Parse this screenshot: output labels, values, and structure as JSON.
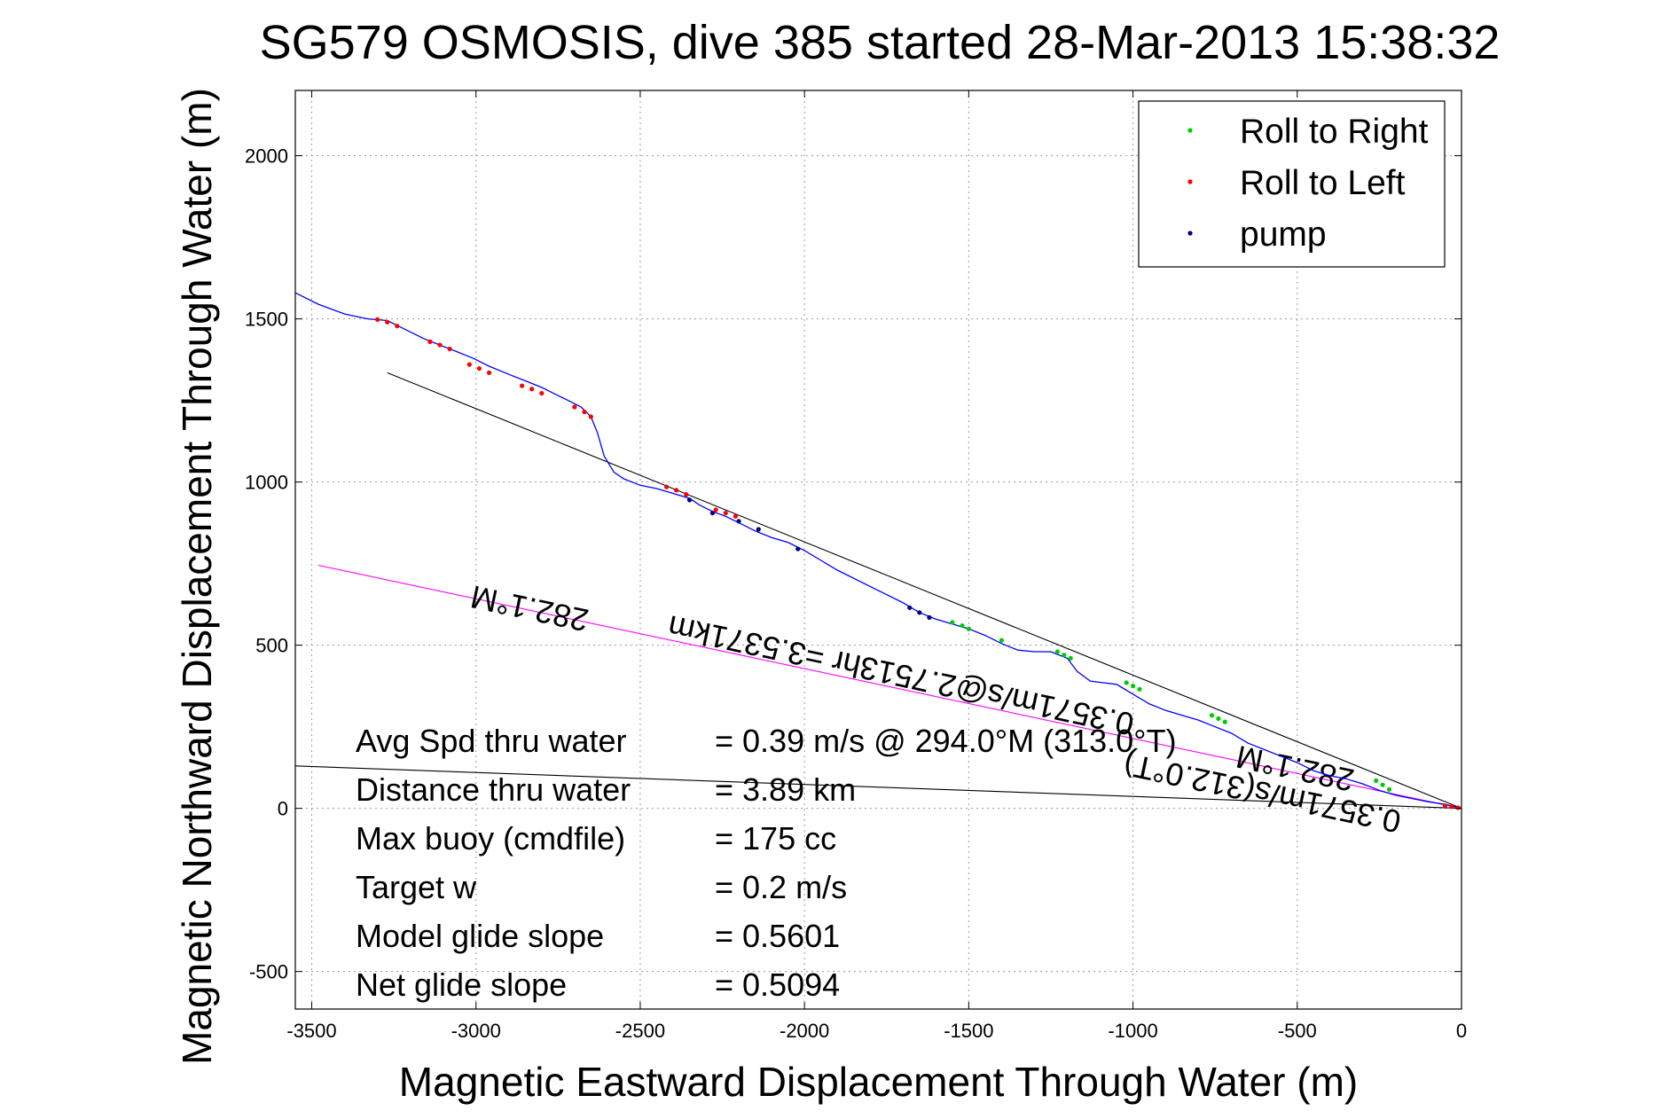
{
  "chart_data": {
    "type": "line",
    "title": "SG579 OSMOSIS, dive 385 started 28-Mar-2013 15:38:32",
    "xlabel": "Magnetic Eastward Displacement Through Water (m)",
    "ylabel": "Magnetic Northward Displacement Through Water (m)",
    "xlim": [
      -3550,
      0
    ],
    "ylim": [
      -615,
      2200
    ],
    "xticks": [
      -3500,
      -3000,
      -2500,
      -2000,
      -1500,
      -1000,
      -500,
      0
    ],
    "yticks": [
      -500,
      0,
      500,
      1000,
      1500,
      2000
    ],
    "grid": true,
    "legend_position": "top-right",
    "colors": {
      "track": "#0000ff",
      "roll_right": "#00cc00",
      "roll_left": "#ff0000",
      "pump": "#000080",
      "heading_line": "#ff00ff",
      "reference_line": "#000000"
    },
    "legend": [
      {
        "label": "Roll to Right",
        "color": "#00cc00"
      },
      {
        "label": "Roll to Left",
        "color": "#ff0000"
      },
      {
        "label": "pump",
        "color": "#000080"
      }
    ],
    "series": [
      {
        "name": "track",
        "x": [
          -3550,
          -3480,
          -3400,
          -3330,
          -3270,
          -3220,
          -3160,
          -3110,
          -3060,
          -3010,
          -2960,
          -2900,
          -2850,
          -2800,
          -2760,
          -2720,
          -2680,
          -2650,
          -2630,
          -2610,
          -2580,
          -2550,
          -2500,
          -2450,
          -2400,
          -2350,
          -2320,
          -2280,
          -2240,
          -2200,
          -2150,
          -2100,
          -2050,
          -2000,
          -1950,
          -1900,
          -1800,
          -1700,
          -1650,
          -1600,
          -1550,
          -1500,
          -1450,
          -1400,
          -1350,
          -1300,
          -1250,
          -1200,
          -1170,
          -1130,
          -1090,
          -1050,
          -1000,
          -950,
          -900,
          -850,
          -800,
          -750,
          -700,
          -650,
          -600,
          -550,
          -500,
          -450,
          -400,
          -350,
          -300,
          -250,
          -200,
          -150,
          -100,
          -50,
          -20,
          0
        ],
        "y": [
          1580,
          1545,
          1515,
          1500,
          1495,
          1470,
          1440,
          1420,
          1400,
          1380,
          1355,
          1330,
          1310,
          1290,
          1270,
          1250,
          1230,
          1200,
          1150,
          1080,
          1030,
          1010,
          990,
          980,
          965,
          950,
          930,
          910,
          895,
          875,
          850,
          830,
          815,
          790,
          760,
          730,
          680,
          630,
          600,
          580,
          565,
          550,
          530,
          505,
          485,
          480,
          480,
          460,
          420,
          390,
          385,
          380,
          350,
          320,
          300,
          285,
          270,
          250,
          230,
          200,
          180,
          160,
          140,
          115,
          100,
          90,
          75,
          55,
          40,
          30,
          20,
          12,
          5,
          0
        ]
      },
      {
        "name": "Roll to Right",
        "x": [
          -1550,
          -1520,
          -1500,
          -1400,
          -1230,
          -1210,
          -1190,
          -1020,
          -1000,
          -980,
          -760,
          -740,
          -720,
          -260,
          -240,
          -220
        ],
        "y": [
          570,
          560,
          550,
          515,
          480,
          470,
          460,
          385,
          375,
          365,
          285,
          275,
          265,
          85,
          72,
          58
        ]
      },
      {
        "name": "Roll to Left",
        "x": [
          -3300,
          -3270,
          -3240,
          -3140,
          -3110,
          -3080,
          -3020,
          -2990,
          -2960,
          -2860,
          -2830,
          -2800,
          -2700,
          -2670,
          -2650,
          -2420,
          -2390,
          -2360,
          -2270,
          -2240,
          -2210,
          -50,
          -30,
          -10
        ],
        "y": [
          1498,
          1490,
          1478,
          1430,
          1420,
          1408,
          1360,
          1348,
          1335,
          1295,
          1285,
          1272,
          1230,
          1215,
          1200,
          985,
          975,
          962,
          915,
          905,
          895,
          8,
          5,
          2
        ]
      },
      {
        "name": "pump",
        "x": [
          -2350,
          -2280,
          -2200,
          -2140,
          -2020,
          -1680,
          -1650,
          -1620
        ],
        "y": [
          945,
          905,
          880,
          855,
          795,
          615,
          600,
          585
        ]
      }
    ],
    "lines": [
      {
        "name": "heading-line",
        "x": [
          -3480,
          0
        ],
        "y": [
          745,
          0
        ]
      },
      {
        "name": "reference-line-upper",
        "x": [
          -3270,
          0
        ],
        "y": [
          1335,
          0
        ]
      },
      {
        "name": "reference-line-lower",
        "x": [
          -3550,
          0
        ],
        "y": [
          130,
          0
        ]
      }
    ],
    "annotations": [
      {
        "text": "282.1°M",
        "x": -2830,
        "y": 645,
        "rotate": 192
      },
      {
        "text": "0.3571m/s@2.7513hr =3.5371km",
        "x": -1700,
        "y": 440,
        "rotate": 192
      },
      {
        "text": "282.1°M",
        "x": -500,
        "y": 155,
        "rotate": 192
      },
      {
        "text": "0.3571m/s(312.0°T)",
        "x": -600,
        "y": 80,
        "rotate": 192
      }
    ],
    "stats": [
      {
        "label": "Avg Spd thru water",
        "value": "=  0.39 m/s @ 294.0°M (313.0°T)"
      },
      {
        "label": "Distance thru water",
        "value": "=  3.89 km"
      },
      {
        "label": "Max buoy (cmdfile)",
        "value": "= 175 cc"
      },
      {
        "label": "Target w",
        "value": "= 0.2 m/s"
      },
      {
        "label": "Model glide slope",
        "value": "= 0.5601"
      },
      {
        "label": "Net glide slope",
        "value": "= 0.5094"
      }
    ]
  }
}
